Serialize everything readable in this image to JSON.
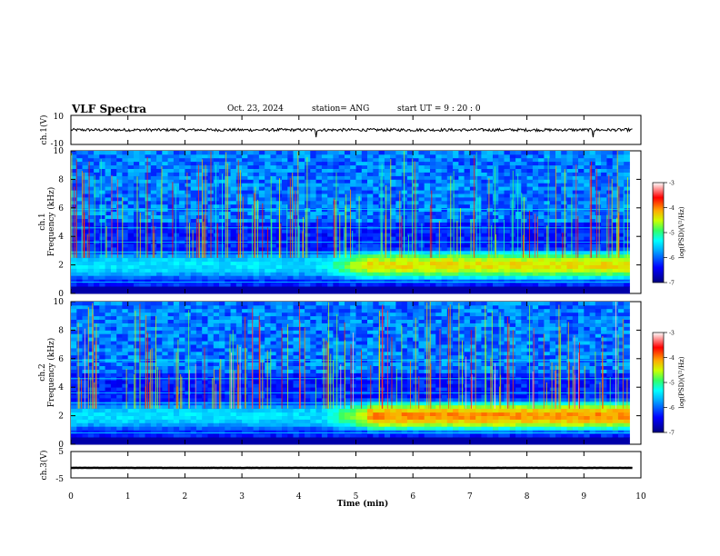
{
  "header": {
    "title": "VLF Spectra",
    "date": "Oct. 23, 2024",
    "station": "station= ANG",
    "start": "start  UT  =   9  : 20 : 0"
  },
  "chart_data": [
    {
      "type": "line",
      "panel": "ch1-waveform",
      "ylabel": "ch.1(V)",
      "ylim": [
        -10,
        10
      ],
      "ytick_labels": [
        "10",
        "-10"
      ],
      "xlim": [
        0,
        10
      ],
      "series": [
        {
          "values_summary": {
            "baseline": 0,
            "amplitude": 1
          }
        }
      ]
    },
    {
      "type": "heatmap",
      "panel": "ch1-spectrogram",
      "ylabel": "ch.1\nFrequency (kHz)",
      "ylim": [
        0,
        10
      ],
      "ytick_labels": [
        "0",
        "2",
        "4",
        "6",
        "8",
        "10"
      ],
      "xlim": [
        0,
        9.8
      ],
      "colorbar": {
        "label": "log(PSD)(V²/Hz)",
        "range": [
          -7,
          -3
        ],
        "tick_labels": [
          "-3",
          "-4",
          "-5",
          "-6",
          "-7"
        ]
      },
      "features": {
        "hiss_band_khz": [
          1,
          3
        ],
        "hiss_intensifies_after_min": 5.2,
        "persistent_lines_khz": [
          0.8,
          2.9,
          3.6,
          4.6,
          5.9
        ]
      }
    },
    {
      "type": "heatmap",
      "panel": "ch2-spectrogram",
      "ylabel": "ch.2\nFrequency (kHz)",
      "ylim": [
        0,
        10
      ],
      "ytick_labels": [
        "0",
        "2",
        "4",
        "6",
        "8",
        "10"
      ],
      "xlim": [
        0,
        9.8
      ],
      "colorbar": {
        "label": "log(PSD)(V²/Hz)",
        "range": [
          -7,
          -3
        ],
        "tick_labels": [
          "-3",
          "-4",
          "-5",
          "-6",
          "-7"
        ]
      },
      "features": {
        "hiss_band_khz": [
          1,
          3
        ],
        "hiss_intensifies_after_min": 5.2,
        "persistent_lines_khz": [
          0.8,
          2.9,
          3.6,
          4.6,
          5.9
        ]
      }
    },
    {
      "type": "line",
      "panel": "ch3-waveform",
      "ylabel": "ch.3(V)",
      "ylim": [
        -5,
        5
      ],
      "ytick_labels": [
        "5",
        "-5"
      ],
      "xlim": [
        0,
        10
      ],
      "series": [
        {
          "values_summary": {
            "baseline": -1.2,
            "amplitude": 0.1
          }
        }
      ]
    }
  ],
  "xaxis": {
    "label": "Time (min)",
    "ticks": [
      0,
      1,
      2,
      3,
      4,
      5,
      6,
      7,
      8,
      9,
      10
    ],
    "tick_labels": [
      "0",
      "1",
      "2",
      "3",
      "4",
      "5",
      "6",
      "7",
      "8",
      "9",
      "10"
    ]
  },
  "colors": {
    "bg": "#000000",
    "scale": [
      "#00007f",
      "#0000ff",
      "#00a0ff",
      "#00ffff",
      "#7fff7f",
      "#ffff00",
      "#ff7f00",
      "#ff0000",
      "#ffffff"
    ]
  }
}
